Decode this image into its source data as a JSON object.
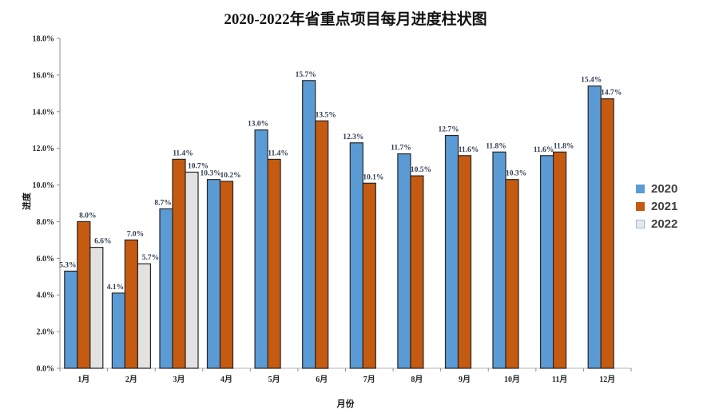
{
  "chart_data": {
    "type": "bar",
    "title": "2020-2022年省重点项目每月进度柱状图",
    "xlabel": "月份",
    "ylabel": "进度",
    "categories": [
      "1月",
      "2月",
      "3月",
      "4月",
      "5月",
      "6月",
      "7月",
      "8月",
      "9月",
      "10月",
      "11月",
      "12月"
    ],
    "series": [
      {
        "name": "2020",
        "fill": "#5B9BD5",
        "legend_fill": "#5B9BD5",
        "legend_stroke": "#5B9BD5",
        "values": [
          5.3,
          4.1,
          8.7,
          10.3,
          13.0,
          15.7,
          12.3,
          11.7,
          12.7,
          11.8,
          11.6,
          15.4
        ]
      },
      {
        "name": "2021",
        "fill": "#C55A11",
        "legend_fill": "#C55A11",
        "legend_stroke": "#C55A11",
        "values": [
          8.0,
          7.0,
          11.4,
          10.2,
          11.4,
          13.5,
          10.1,
          10.5,
          11.6,
          10.3,
          11.8,
          14.7
        ]
      },
      {
        "name": "2022",
        "fill": "#E2E2E2",
        "legend_fill": "#E9E8E8",
        "legend_stroke": "#9CB8DC",
        "values": [
          6.6,
          5.7,
          10.7,
          null,
          null,
          null,
          null,
          null,
          null,
          null,
          null,
          null
        ]
      }
    ],
    "ylim": [
      0,
      18
    ],
    "ytick_step": 2,
    "value_suffix": "%",
    "grid": false,
    "legend_position": "right",
    "data_labels_shown": true,
    "colors": {
      "bar_stroke": "#262626",
      "axis": "#8F8F8F",
      "x_axis": "#B5B5B5",
      "data_label": "#2E3B50",
      "tick_label": "#262626",
      "title": "#141414",
      "legend_text": "#404040",
      "background": "#FFFFFF"
    }
  }
}
